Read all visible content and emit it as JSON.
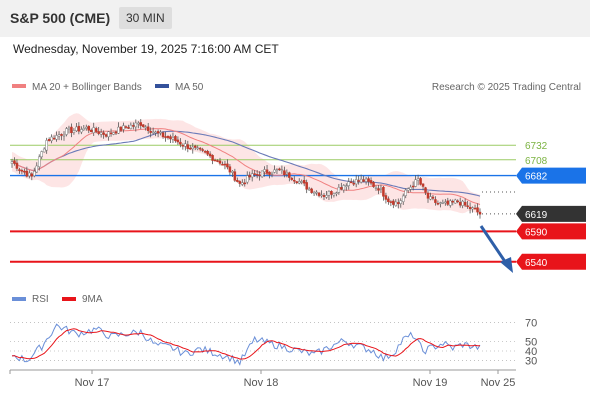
{
  "header": {
    "title": "S&P 500 (CME)",
    "timeframe": "30 MIN"
  },
  "datetime": "Wednesday, November 19, 2025 7:16:00 AM CET",
  "legend": {
    "ma20": "MA 20 + Bollinger Bands",
    "ma50": "MA 50",
    "credit": "Research © 2025 Trading Central"
  },
  "rsi_legend": {
    "rsi": "RSI",
    "ma9": "9MA"
  },
  "colors": {
    "ma20": "#f08080",
    "band_fill": "#fde0e0",
    "ma50": "#6a7ab8",
    "candle": "#c0392b",
    "support_red": "#e8141a",
    "resist_green": "#9ccc65",
    "pivot_blue": "#1a73e8",
    "last_price": "#333333",
    "arrow": "#2e5fa8",
    "rsi_line": "#6a8fd8",
    "rsi_ma": "#e8141a"
  },
  "chart_data": [
    {
      "type": "candlestick",
      "title": "S&P 500 (CME)",
      "x_ticks": [
        "Nov 17",
        "Nov 18",
        "Nov 19",
        "Nov 25"
      ],
      "ylim": [
        6510,
        6790
      ],
      "last_price": 6619,
      "levels": [
        {
          "label": "6732",
          "value": 6732,
          "kind": "resistance"
        },
        {
          "label": "6708",
          "value": 6708,
          "kind": "resistance"
        },
        {
          "label": "6682",
          "value": 6682,
          "kind": "pivot"
        },
        {
          "label": "6590",
          "value": 6590,
          "kind": "support"
        },
        {
          "label": "6540",
          "value": 6540,
          "kind": "support"
        }
      ],
      "close_anchors": [
        [
          0,
          6705
        ],
        [
          4,
          6690
        ],
        [
          8,
          6680
        ],
        [
          14,
          6740
        ],
        [
          22,
          6755
        ],
        [
          30,
          6760
        ],
        [
          38,
          6750
        ],
        [
          46,
          6762
        ],
        [
          52,
          6768
        ],
        [
          58,
          6752
        ],
        [
          66,
          6740
        ],
        [
          72,
          6728
        ],
        [
          78,
          6718
        ],
        [
          84,
          6705
        ],
        [
          88,
          6690
        ],
        [
          92,
          6668
        ],
        [
          96,
          6680
        ],
        [
          102,
          6688
        ],
        [
          108,
          6690
        ],
        [
          114,
          6678
        ],
        [
          120,
          6660
        ],
        [
          126,
          6650
        ],
        [
          130,
          6656
        ],
        [
          136,
          6672
        ],
        [
          142,
          6674
        ],
        [
          148,
          6662
        ],
        [
          152,
          6642
        ],
        [
          156,
          6636
        ],
        [
          160,
          6660
        ],
        [
          164,
          6675
        ],
        [
          168,
          6645
        ],
        [
          172,
          6636
        ],
        [
          176,
          6634
        ],
        [
          180,
          6640
        ],
        [
          184,
          6630
        ],
        [
          187,
          6625
        ],
        [
          189,
          6619
        ]
      ]
    },
    {
      "type": "line",
      "name": "RSI",
      "y_ticks": [
        70,
        50,
        40,
        30
      ],
      "ylim": [
        22,
        78
      ],
      "x_ticks": [
        "Nov 17",
        "Nov 18",
        "Nov 19",
        "Nov 25"
      ],
      "rsi_anchors": [
        [
          0,
          36
        ],
        [
          6,
          30
        ],
        [
          12,
          45
        ],
        [
          18,
          67
        ],
        [
          26,
          58
        ],
        [
          34,
          63
        ],
        [
          40,
          55
        ],
        [
          46,
          58
        ],
        [
          52,
          60
        ],
        [
          58,
          46
        ],
        [
          64,
          44
        ],
        [
          70,
          37
        ],
        [
          76,
          42
        ],
        [
          82,
          38
        ],
        [
          88,
          33
        ],
        [
          92,
          28
        ],
        [
          98,
          52
        ],
        [
          104,
          48
        ],
        [
          110,
          44
        ],
        [
          116,
          40
        ],
        [
          122,
          36
        ],
        [
          128,
          44
        ],
        [
          134,
          51
        ],
        [
          140,
          45
        ],
        [
          146,
          40
        ],
        [
          150,
          32
        ],
        [
          154,
          38
        ],
        [
          158,
          52
        ],
        [
          162,
          57
        ],
        [
          166,
          40
        ],
        [
          170,
          44
        ],
        [
          174,
          48
        ],
        [
          178,
          43
        ],
        [
          182,
          47
        ],
        [
          186,
          45
        ],
        [
          189,
          43
        ]
      ]
    }
  ]
}
